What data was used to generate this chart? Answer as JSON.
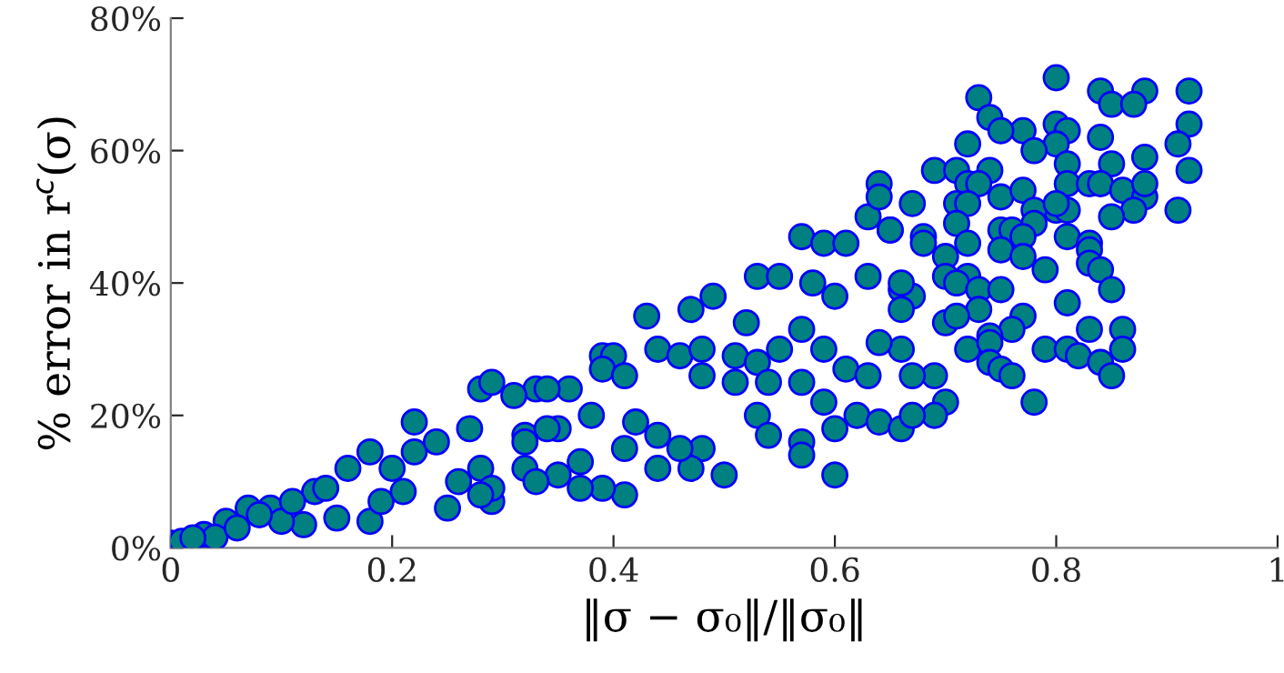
{
  "chart_data": {
    "type": "scatter",
    "xlabel": "‖σ − σ₀‖/‖σ₀‖",
    "ylabel": "% error in r$^{c}$(σ)",
    "xlim": [
      0,
      1
    ],
    "xticks": [
      0,
      0.2,
      0.4,
      0.6,
      0.8,
      1
    ],
    "ylim": [
      0,
      80
    ],
    "yticks": [
      {
        "value": 0,
        "label": "0%"
      },
      {
        "value": 20,
        "label": "20%"
      },
      {
        "value": 40,
        "label": "40%"
      },
      {
        "value": 60,
        "label": "60%"
      },
      {
        "value": 80,
        "label": "80%"
      }
    ],
    "marker": "circle",
    "series": [
      {
        "color": "#008080",
        "x": [
          0.28,
          0.29,
          0.22,
          0.33,
          0.31,
          0.12,
          0.15,
          0.18,
          0.29,
          0.25,
          0.13,
          0.16,
          0.18,
          0.22,
          0.07,
          0.05,
          0.03,
          0.0,
          0.09,
          0.19,
          0.21,
          0.26,
          0.28,
          0.32,
          0.35,
          0.32,
          0.27,
          0.24,
          0.2,
          0.14,
          0.1,
          0.04,
          0.01,
          0.02,
          0.06,
          0.08,
          0.11,
          0.64,
          0.63,
          0.57,
          0.65,
          0.59,
          0.61,
          0.53,
          0.55,
          0.49,
          0.43,
          0.47,
          0.52,
          0.58,
          0.6,
          0.63,
          0.66,
          0.57,
          0.59,
          0.61,
          0.63,
          0.66,
          0.64,
          0.44,
          0.39,
          0.4,
          0.46,
          0.48,
          0.51,
          0.53,
          0.55,
          0.48,
          0.51,
          0.54,
          0.57,
          0.59,
          0.62,
          0.64,
          0.66,
          0.6,
          0.53,
          0.54,
          0.57,
          0.57,
          0.6,
          0.5,
          0.48,
          0.47,
          0.44,
          0.42,
          0.41,
          0.41,
          0.39,
          0.37,
          0.37,
          0.38,
          0.36,
          0.39,
          0.41,
          0.34,
          0.34,
          0.32,
          0.35,
          0.33,
          0.29,
          0.28,
          0.46,
          0.44,
          0.8,
          0.92,
          0.88,
          0.84,
          0.73,
          0.74,
          0.85,
          0.87,
          0.92,
          0.8,
          0.77,
          0.75,
          0.72,
          0.81,
          0.84,
          0.8,
          0.78,
          0.91,
          0.88,
          0.92,
          0.85,
          0.81,
          0.69,
          0.71,
          0.74,
          0.72,
          0.73,
          0.75,
          0.77,
          0.81,
          0.83,
          0.84,
          0.86,
          0.88,
          0.88,
          0.91,
          0.87,
          0.85,
          0.8,
          0.81,
          0.78,
          0.8,
          0.71,
          0.72,
          0.67,
          0.64,
          0.71,
          0.65,
          0.68,
          0.68,
          0.72,
          0.75,
          0.76,
          0.78,
          0.77,
          0.75,
          0.77,
          0.81,
          0.79,
          0.83,
          0.83,
          0.83,
          0.84,
          0.85,
          0.81,
          0.7,
          0.7,
          0.72,
          0.71,
          0.73,
          0.75,
          0.73,
          0.67,
          0.66,
          0.66,
          0.7,
          0.71,
          0.77,
          0.76,
          0.74,
          0.83,
          0.86,
          0.86,
          0.79,
          0.81,
          0.82,
          0.72,
          0.74,
          0.74,
          0.75,
          0.76,
          0.84,
          0.85,
          0.78,
          0.69,
          0.67,
          0.7,
          0.69,
          0.67
        ],
        "values": [
          24,
          25,
          19,
          24,
          23,
          3.5,
          4.5,
          4,
          7,
          6,
          8.5,
          12,
          14.5,
          14.5,
          6,
          4,
          2,
          0.7,
          6,
          7,
          8.5,
          10,
          12,
          12,
          18,
          17,
          18,
          16,
          12,
          9,
          4,
          1.6,
          1,
          1.5,
          3,
          5,
          7,
          55,
          50,
          47,
          48,
          46,
          46,
          41,
          41,
          38,
          35,
          36,
          34,
          40,
          38,
          41,
          39,
          33,
          30,
          27,
          26,
          30,
          31,
          30,
          29,
          29,
          29,
          30,
          29,
          28,
          30,
          26,
          25,
          25,
          25,
          22,
          20,
          19,
          18,
          18,
          20,
          17,
          16,
          14,
          11,
          11,
          15,
          12,
          17,
          19,
          15,
          8,
          9,
          9,
          13,
          20,
          24,
          27,
          26,
          24,
          18,
          16,
          11,
          10,
          9,
          8,
          15,
          12,
          71,
          69,
          69,
          69,
          68,
          65,
          67,
          67,
          64,
          64,
          63,
          63,
          61,
          63,
          62,
          61,
          60,
          61,
          59,
          57,
          58,
          58,
          57,
          57,
          57,
          55,
          55,
          53,
          54,
          55,
          55,
          55,
          54,
          53,
          55,
          51,
          51,
          50,
          51,
          51,
          51,
          52,
          52,
          52,
          52,
          53,
          49,
          48,
          47,
          46,
          46,
          48,
          48,
          49,
          47,
          45,
          44,
          47,
          42,
          46,
          45,
          43,
          42,
          39,
          37,
          44,
          41,
          41,
          40,
          39,
          39,
          36,
          38,
          40,
          36,
          34,
          35,
          35,
          33,
          32,
          33,
          33,
          30,
          30,
          30,
          29,
          30,
          31,
          28,
          27,
          26,
          28,
          26,
          22,
          26,
          26,
          22,
          20,
          20
        ]
      }
    ]
  }
}
